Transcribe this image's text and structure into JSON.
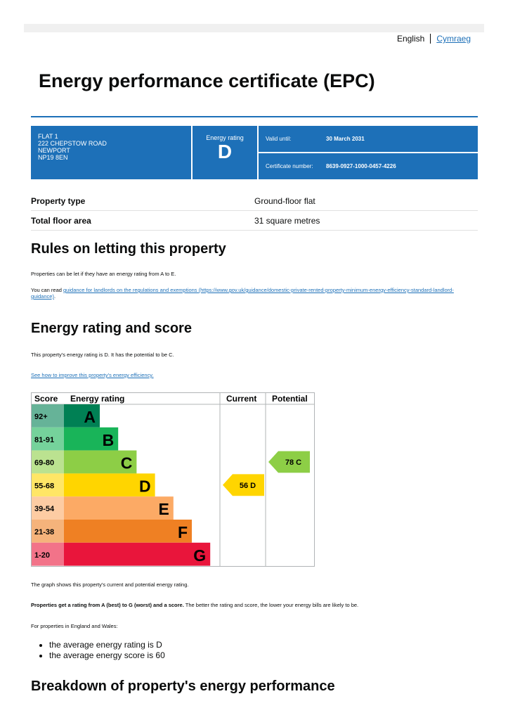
{
  "language": {
    "english": "English",
    "welsh": "Cymraeg"
  },
  "title": "Energy performance certificate (EPC)",
  "header": {
    "address": [
      "FLAT 1",
      "222 CHEPSTOW ROAD",
      "NEWPORT",
      "NP19 8EN"
    ],
    "rating_label": "Energy rating",
    "rating": "D",
    "valid_label": "Valid until:",
    "valid_value": "30 March 2031",
    "cert_label": "Certificate number:",
    "cert_value": "8639-0927-1000-0457-4226"
  },
  "property": [
    {
      "k": "Property type",
      "v": "Ground-floor flat"
    },
    {
      "k": "Total floor area",
      "v": "31 square metres"
    }
  ],
  "letting": {
    "heading": "Rules on letting this property",
    "p1": "Properties can be let if they have an energy rating from A to E.",
    "p2_prefix": "You can read ",
    "p2_link": "guidance for landlords on the regulations and exemptions (https://www.gov.uk/guidance/domestic-private-rented-property-minimum-energy-efficiency-standard-landlord-guidance)",
    "p2_suffix": "."
  },
  "score": {
    "heading": "Energy rating and score",
    "p1": "This property's energy rating is D. It has the potential to be C.",
    "link": "See how to improve this property's energy efficiency.",
    "p2": "The graph shows this property's current and potential energy rating.",
    "p3_bold": "Properties get a rating from A (best) to G (worst) and a score.",
    "p3_rest": " The better the rating and score, the lower your energy bills are likely to be.",
    "p4": "For properties in England and Wales:",
    "bullets": [
      "the average energy rating is D",
      "the average energy score is 60"
    ]
  },
  "breakdown_heading": "Breakdown of property's energy performance",
  "chart_data": {
    "type": "table",
    "headers": [
      "Score",
      "Energy rating",
      "Current",
      "Potential"
    ],
    "bands": [
      {
        "score": "92+",
        "letter": "A",
        "color": "#008054",
        "light": "#66b398"
      },
      {
        "score": "81-91",
        "letter": "B",
        "color": "#19b459",
        "light": "#75d29b"
      },
      {
        "score": "69-80",
        "letter": "C",
        "color": "#8dce46",
        "light": "#bbe290"
      },
      {
        "score": "55-68",
        "letter": "D",
        "color": "#ffd500",
        "light": "#ffe666"
      },
      {
        "score": "39-54",
        "letter": "E",
        "color": "#fcaa65",
        "light": "#fdcca3"
      },
      {
        "score": "21-38",
        "letter": "F",
        "color": "#ef8023",
        "light": "#f5b37b"
      },
      {
        "score": "1-20",
        "letter": "G",
        "color": "#e9153b",
        "light": "#f27389"
      }
    ],
    "current": {
      "value": 56,
      "letter": "D",
      "label": "56  D"
    },
    "potential": {
      "value": 78,
      "letter": "C",
      "label": "78  C"
    }
  }
}
